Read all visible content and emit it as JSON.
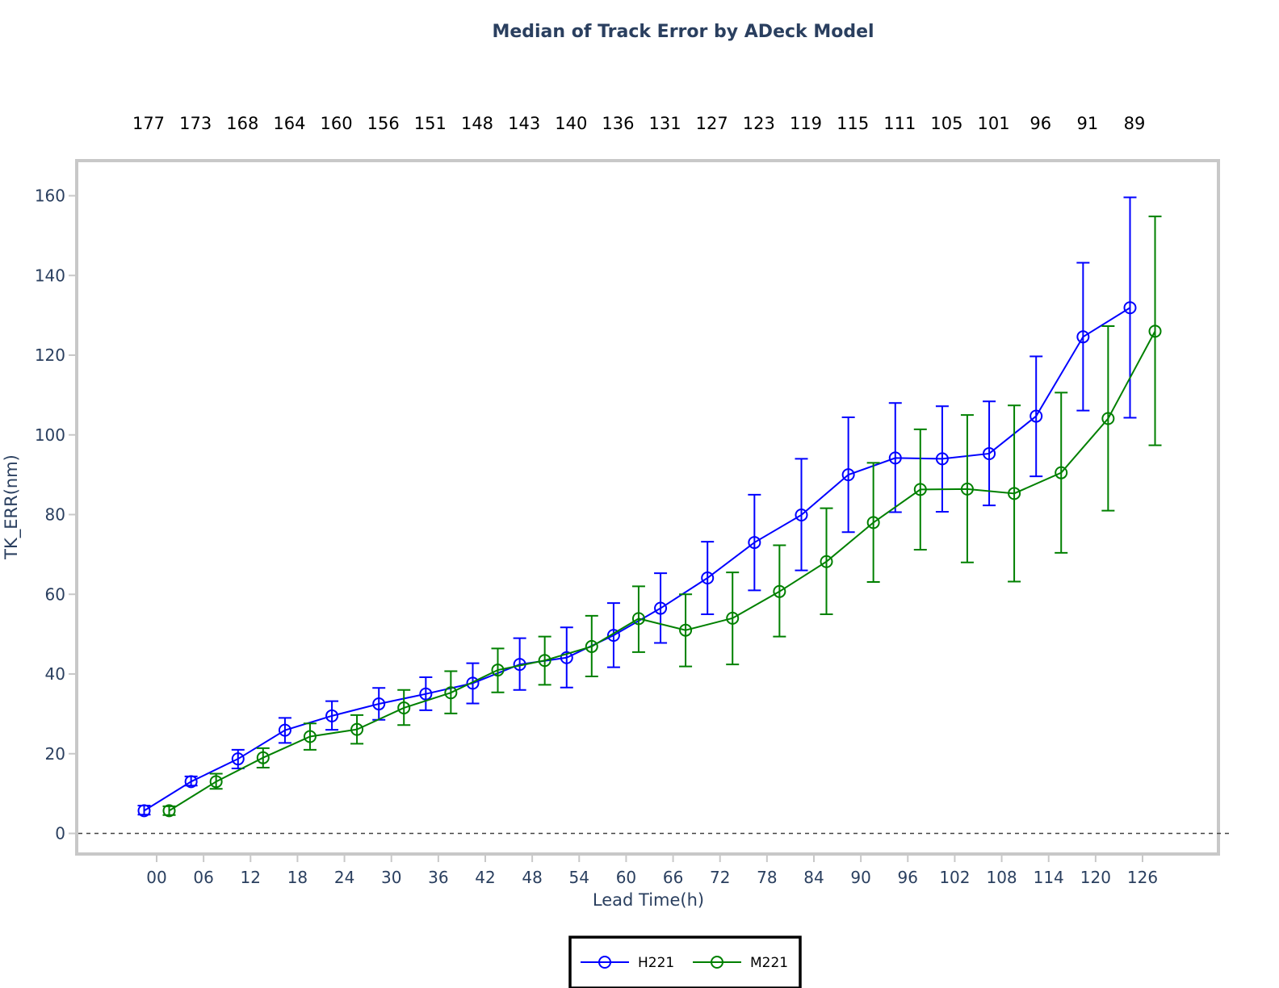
{
  "chart_data": {
    "type": "line",
    "title": "Median of Track Error by ADeck Model",
    "xlabel": "Lead Time(h)",
    "ylabel": "TK_ERR(nm)",
    "categories": [
      "00",
      "06",
      "12",
      "18",
      "24",
      "30",
      "36",
      "42",
      "48",
      "54",
      "60",
      "66",
      "72",
      "78",
      "84",
      "90",
      "96",
      "102",
      "108",
      "114",
      "120",
      "126"
    ],
    "counts": [
      "177",
      "173",
      "168",
      "164",
      "160",
      "156",
      "151",
      "148",
      "143",
      "140",
      "136",
      "131",
      "127",
      "123",
      "119",
      "115",
      "111",
      "105",
      "101",
      "96",
      "91",
      "89"
    ],
    "ylim": [
      -5,
      169
    ],
    "yticks": [
      0,
      20,
      40,
      60,
      80,
      100,
      120,
      140,
      160
    ],
    "grid": false,
    "zero_line": "dashed",
    "legend_position": "bottom-center",
    "series": [
      {
        "name": "H221",
        "color": "#0000ff",
        "offset": -1.6,
        "values": [
          5.7,
          13.0,
          18.7,
          25.9,
          29.5,
          32.5,
          35.0,
          37.7,
          42.4,
          44.1,
          49.7,
          56.5,
          64.1,
          73.0,
          79.9,
          90.0,
          94.2,
          94.0,
          95.3,
          104.7,
          124.6,
          131.9
        ],
        "lower": [
          4.7,
          12.0,
          16.3,
          22.7,
          26.0,
          28.5,
          30.9,
          32.6,
          36.0,
          36.6,
          41.7,
          47.8,
          55.0,
          61.0,
          66.0,
          75.6,
          80.6,
          80.7,
          82.3,
          89.6,
          106.1,
          104.3
        ],
        "upper": [
          7.0,
          14.3,
          21.0,
          29.0,
          33.2,
          36.5,
          39.2,
          42.7,
          49.0,
          51.7,
          57.8,
          65.3,
          73.2,
          85.0,
          94.0,
          104.4,
          108.0,
          107.2,
          108.4,
          119.7,
          143.2,
          159.6
        ]
      },
      {
        "name": "M221",
        "color": "#008000",
        "offset": 1.6,
        "values": [
          5.7,
          13.0,
          19.0,
          24.3,
          26.1,
          31.5,
          35.3,
          41.0,
          43.4,
          46.9,
          53.9,
          51.0,
          54.0,
          60.7,
          68.2,
          78.0,
          86.3,
          86.4,
          85.3,
          90.5,
          104.1,
          126.0
        ],
        "lower": [
          4.6,
          11.2,
          16.5,
          21.0,
          22.5,
          27.2,
          30.1,
          35.4,
          37.3,
          39.4,
          45.5,
          41.9,
          42.4,
          49.4,
          55.0,
          63.1,
          71.2,
          68.0,
          63.2,
          70.4,
          81.0,
          97.4
        ],
        "upper": [
          6.8,
          15.0,
          21.4,
          27.6,
          29.7,
          36.0,
          40.7,
          46.4,
          49.4,
          54.6,
          62.0,
          60.0,
          65.5,
          72.3,
          81.6,
          93.0,
          101.4,
          105.0,
          107.4,
          110.6,
          127.3,
          154.8
        ]
      }
    ]
  }
}
